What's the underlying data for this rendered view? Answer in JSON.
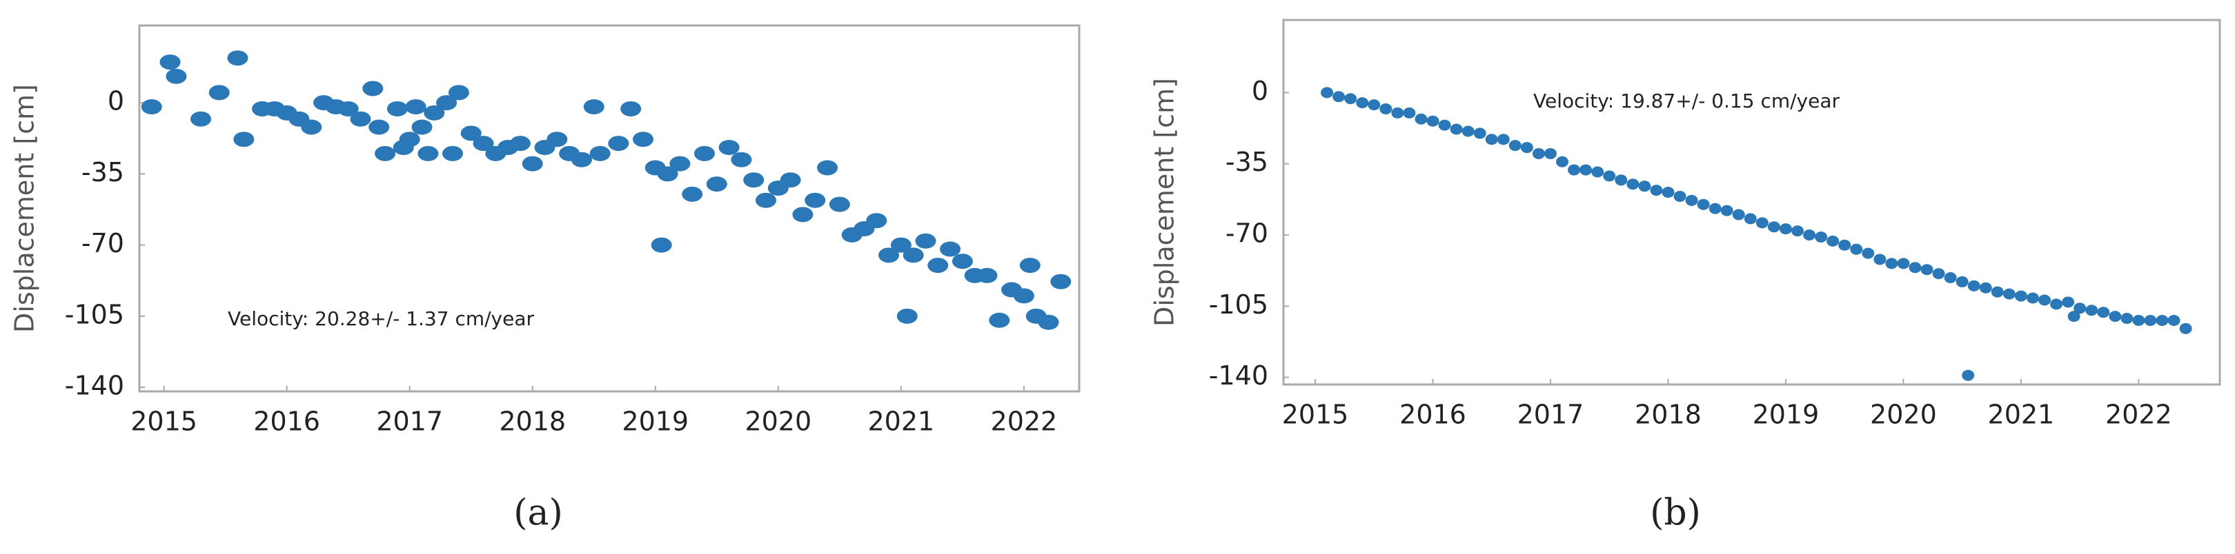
{
  "chart_data": [
    {
      "type": "scatter",
      "label": "(a)",
      "ylabel": "Displacement [cm]",
      "annotation": "Velocity: 20.28+/- 1.37 cm/year",
      "xlim": [
        2014.8,
        2022.45
      ],
      "ylim": [
        -142,
        38
      ],
      "xticks": [
        2015,
        2016,
        2017,
        2018,
        2019,
        2020,
        2021,
        2022
      ],
      "yticks": [
        0,
        -35,
        -70,
        -105,
        -140
      ],
      "x": [
        2014.9,
        2015.05,
        2015.1,
        2015.3,
        2015.45,
        2015.6,
        2015.65,
        2015.8,
        2015.9,
        2016.0,
        2016.1,
        2016.2,
        2016.3,
        2016.4,
        2016.5,
        2016.6,
        2016.7,
        2016.75,
        2016.8,
        2016.9,
        2016.95,
        2017.0,
        2017.05,
        2017.1,
        2017.15,
        2017.2,
        2017.3,
        2017.35,
        2017.4,
        2017.5,
        2017.6,
        2017.7,
        2017.8,
        2017.9,
        2018.0,
        2018.1,
        2018.2,
        2018.3,
        2018.4,
        2018.5,
        2018.55,
        2018.7,
        2018.8,
        2018.9,
        2019.0,
        2019.05,
        2019.1,
        2019.2,
        2019.3,
        2019.4,
        2019.5,
        2019.6,
        2019.7,
        2019.8,
        2019.9,
        2020.0,
        2020.1,
        2020.2,
        2020.3,
        2020.4,
        2020.5,
        2020.6,
        2020.7,
        2020.8,
        2020.9,
        2021.0,
        2021.05,
        2021.1,
        2021.2,
        2021.3,
        2021.4,
        2021.5,
        2021.6,
        2021.7,
        2021.8,
        2021.9,
        2022.0,
        2022.05,
        2022.1,
        2022.2,
        2022.3
      ],
      "series": [
        {
          "color": "#2a78b8",
          "values": [
            -2,
            20,
            13,
            -8,
            5,
            22,
            -18,
            -3,
            -3,
            -5,
            -8,
            -12,
            0,
            -2,
            -3,
            -8,
            7,
            -12,
            -25,
            -3,
            -22,
            -18,
            -2,
            -12,
            -25,
            -5,
            0,
            -25,
            5,
            -15,
            -20,
            -25,
            -22,
            -20,
            -30,
            -22,
            -18,
            -25,
            -28,
            -2,
            -25,
            -20,
            -3,
            -18,
            -32,
            -70,
            -35,
            -30,
            -45,
            -25,
            -40,
            -22,
            -28,
            -38,
            -48,
            -42,
            -38,
            -55,
            -48,
            -32,
            -50,
            -65,
            -62,
            -58,
            -75,
            -70,
            -105,
            -75,
            -68,
            -80,
            -72,
            -78,
            -85,
            -85,
            -107,
            -92,
            -95,
            -80,
            -105,
            -108,
            -88
          ]
        }
      ]
    },
    {
      "type": "scatter",
      "label": "(b)",
      "ylabel": "Displacement [cm]",
      "annotation": "Velocity: 19.87+/- 0.15 cm/year",
      "xlim": [
        2014.73,
        2022.69
      ],
      "ylim": [
        -143.5,
        35.7
      ],
      "xticks": [
        2015,
        2016,
        2017,
        2018,
        2019,
        2020,
        2021,
        2022
      ],
      "yticks": [
        0,
        -35,
        -70,
        -105,
        -140
      ],
      "x": [
        2015.1,
        2015.2,
        2015.3,
        2015.4,
        2015.5,
        2015.6,
        2015.7,
        2015.8,
        2015.9,
        2016.0,
        2016.1,
        2016.2,
        2016.3,
        2016.4,
        2016.5,
        2016.6,
        2016.7,
        2016.8,
        2016.9,
        2017.0,
        2017.1,
        2017.2,
        2017.3,
        2017.4,
        2017.5,
        2017.6,
        2017.7,
        2017.8,
        2017.9,
        2018.0,
        2018.1,
        2018.2,
        2018.3,
        2018.4,
        2018.5,
        2018.6,
        2018.7,
        2018.8,
        2018.9,
        2019.0,
        2019.1,
        2019.2,
        2019.3,
        2019.4,
        2019.5,
        2019.6,
        2019.7,
        2019.8,
        2019.9,
        2020.0,
        2020.1,
        2020.2,
        2020.3,
        2020.4,
        2020.5,
        2020.6,
        2020.7,
        2020.8,
        2020.9,
        2021.0,
        2021.1,
        2021.2,
        2021.3,
        2021.4,
        2021.5,
        2021.6,
        2021.7,
        2021.8,
        2021.9,
        2022.0,
        2022.1,
        2022.2,
        2022.3,
        2022.4,
        2021.45,
        2020.55
      ],
      "series": [
        {
          "color": "#2a78b8",
          "values": [
            0,
            -2,
            -3,
            -5,
            -6,
            -8,
            -10,
            -10,
            -13,
            -14,
            -16,
            -18,
            -19,
            -20,
            -23,
            -23,
            -26,
            -27,
            -30,
            -30,
            -34,
            -38,
            -38,
            -39,
            -41,
            -43,
            -45,
            -46,
            -48,
            -49,
            -51,
            -53,
            -55,
            -57,
            -58,
            -60,
            -62,
            -64,
            -66,
            -67,
            -68,
            -70,
            -71,
            -73,
            -75,
            -77,
            -79,
            -82,
            -84,
            -84,
            -86,
            -87,
            -89,
            -91,
            -93,
            -95,
            -96,
            -98,
            -99,
            -100,
            -101,
            -102,
            -104,
            -103,
            -106,
            -107,
            -108,
            -110,
            -111,
            -112,
            -112,
            -112,
            -112,
            -116,
            -110,
            -139
          ]
        }
      ]
    }
  ]
}
